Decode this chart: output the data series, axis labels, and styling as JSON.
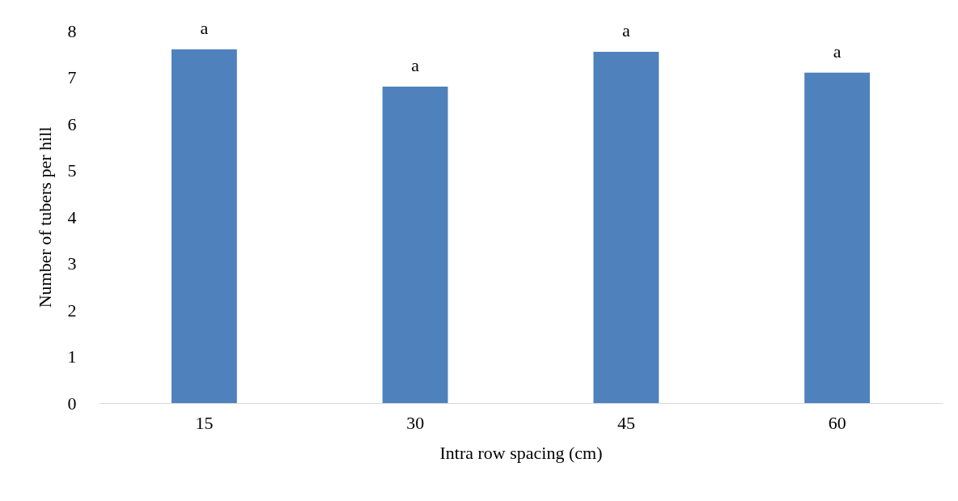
{
  "chart_data": {
    "type": "bar",
    "xlabel": "Intra row spacing (cm)",
    "ylabel": "Number of tubers per hill",
    "categories": [
      "15",
      "30",
      "45",
      "60"
    ],
    "values": [
      7.6,
      6.8,
      7.55,
      7.1
    ],
    "color": "#4f81bd",
    "ylim": [
      0,
      8
    ],
    "yticks": [
      0,
      1,
      2,
      3,
      4,
      5,
      6,
      7,
      8
    ],
    "grid": false,
    "annotations": [
      {
        "text": "a",
        "x": "15",
        "y": 7.6
      },
      {
        "text": "a",
        "x": "30",
        "y": 6.8
      },
      {
        "text": "a",
        "x": "45",
        "y": 7.55
      },
      {
        "text": "a",
        "x": "60",
        "y": 7.1
      }
    ]
  }
}
